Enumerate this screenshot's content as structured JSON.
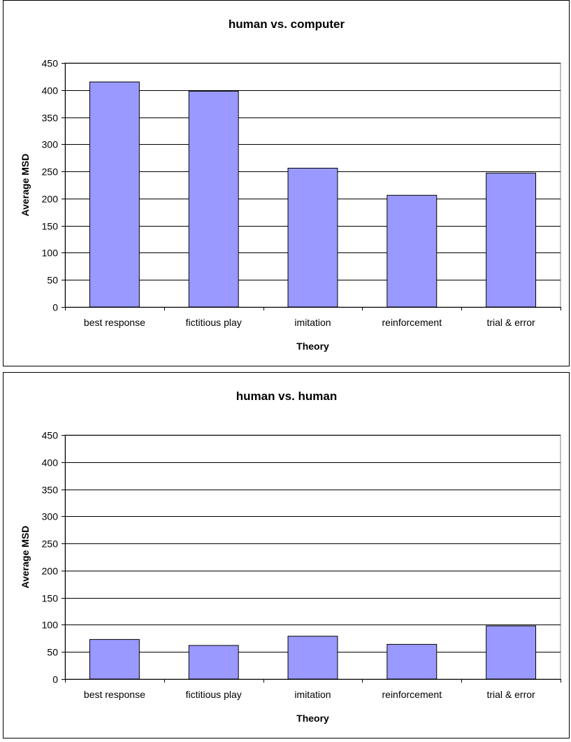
{
  "chart_data": [
    {
      "type": "bar",
      "title": "human vs. computer",
      "xlabel": "Theory",
      "ylabel": "Average MSD",
      "categories": [
        "best response",
        "fictitious play",
        "imitation",
        "reinforcement",
        "trial & error"
      ],
      "values": [
        415,
        398,
        256,
        206,
        247
      ],
      "ylim": [
        0,
        450
      ],
      "yticks": [
        0,
        50,
        100,
        150,
        200,
        250,
        300,
        350,
        400,
        450
      ],
      "grid": true,
      "legend": "none",
      "colors": {
        "bar": "#9999ff",
        "plot_background": "#ffffff",
        "gridline": "#000000"
      }
    },
    {
      "type": "bar",
      "title": "human vs. human",
      "xlabel": "Theory",
      "ylabel": "Average MSD",
      "categories": [
        "best response",
        "fictitious play",
        "imitation",
        "reinforcement",
        "trial & error"
      ],
      "values": [
        73,
        62,
        79,
        64,
        98
      ],
      "ylim": [
        0,
        450
      ],
      "yticks": [
        0,
        50,
        100,
        150,
        200,
        250,
        300,
        350,
        400,
        450
      ],
      "grid": true,
      "legend": "none",
      "colors": {
        "bar": "#9999ff",
        "plot_background": "#ffffff",
        "gridline": "#000000"
      }
    }
  ]
}
